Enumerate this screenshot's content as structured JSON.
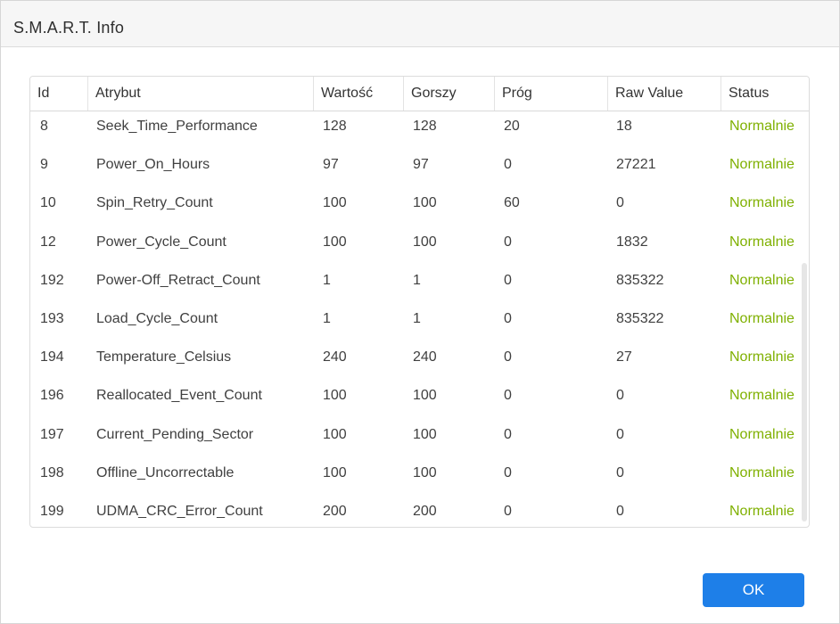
{
  "dialog": {
    "title": "S.M.A.R.T. Info",
    "ok_label": "OK"
  },
  "table": {
    "headers": [
      "Id",
      "Atrybut",
      "Wartość",
      "Gorszy",
      "Próg",
      "Raw Value",
      "Status"
    ],
    "rows": [
      {
        "id": "8",
        "attribute": "Seek_Time_Performance",
        "value": "128",
        "worst": "128",
        "threshold": "20",
        "raw": "18",
        "status": "Normalnie"
      },
      {
        "id": "9",
        "attribute": "Power_On_Hours",
        "value": "97",
        "worst": "97",
        "threshold": "0",
        "raw": "27221",
        "status": "Normalnie"
      },
      {
        "id": "10",
        "attribute": "Spin_Retry_Count",
        "value": "100",
        "worst": "100",
        "threshold": "60",
        "raw": "0",
        "status": "Normalnie"
      },
      {
        "id": "12",
        "attribute": "Power_Cycle_Count",
        "value": "100",
        "worst": "100",
        "threshold": "0",
        "raw": "1832",
        "status": "Normalnie"
      },
      {
        "id": "192",
        "attribute": "Power-Off_Retract_Count",
        "value": "1",
        "worst": "1",
        "threshold": "0",
        "raw": "835322",
        "status": "Normalnie"
      },
      {
        "id": "193",
        "attribute": "Load_Cycle_Count",
        "value": "1",
        "worst": "1",
        "threshold": "0",
        "raw": "835322",
        "status": "Normalnie"
      },
      {
        "id": "194",
        "attribute": "Temperature_Celsius",
        "value": "240",
        "worst": "240",
        "threshold": "0",
        "raw": "27",
        "status": "Normalnie"
      },
      {
        "id": "196",
        "attribute": "Reallocated_Event_Count",
        "value": "100",
        "worst": "100",
        "threshold": "0",
        "raw": "0",
        "status": "Normalnie"
      },
      {
        "id": "197",
        "attribute": "Current_Pending_Sector",
        "value": "100",
        "worst": "100",
        "threshold": "0",
        "raw": "0",
        "status": "Normalnie"
      },
      {
        "id": "198",
        "attribute": "Offline_Uncorrectable",
        "value": "100",
        "worst": "100",
        "threshold": "0",
        "raw": "0",
        "status": "Normalnie"
      },
      {
        "id": "199",
        "attribute": "UDMA_CRC_Error_Count",
        "value": "200",
        "worst": "200",
        "threshold": "0",
        "raw": "0",
        "status": "Normalnie"
      }
    ]
  },
  "colors": {
    "status_ok": "#7fb000",
    "accent": "#1e7fe8"
  }
}
